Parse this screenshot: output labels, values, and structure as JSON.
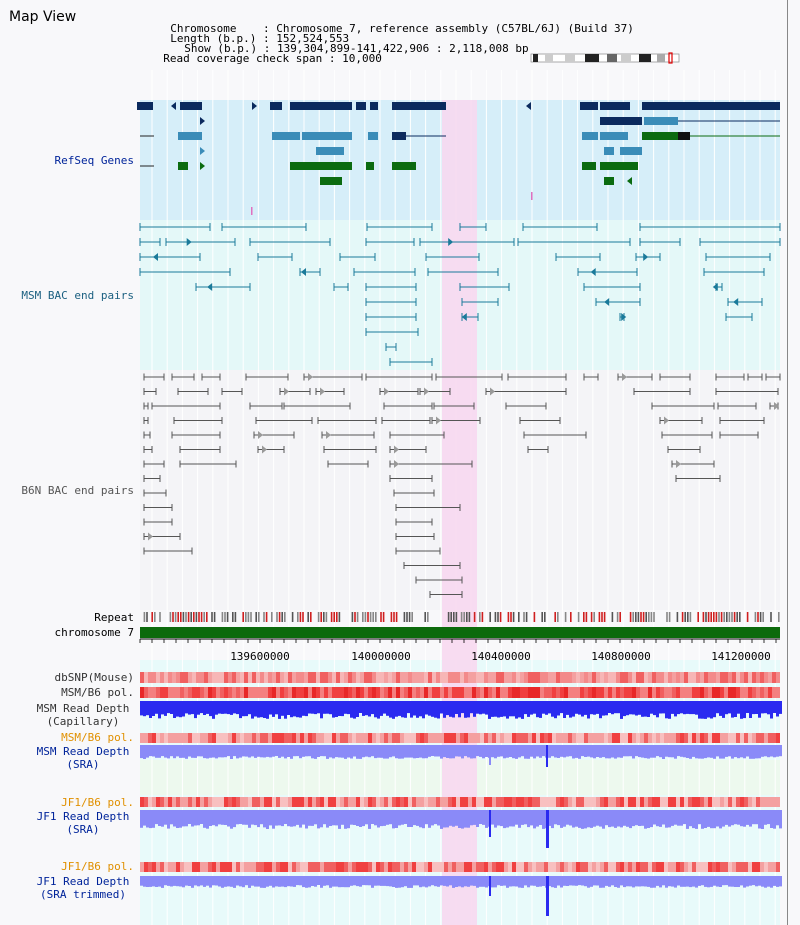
{
  "header": {
    "title": "Map View",
    "chromosome_label": "Chromosome",
    "chromosome_value": "Chromosome 7, reference assembly (C57BL/6J) (Build 37)",
    "length_label": "Length (b.p.)",
    "length_value": "152,524,553",
    "show_label": "Show (b.p.)",
    "show_value": "139,304,899-141,422,906 : 2,118,008 bp",
    "coverage_label": "Read coverage check span",
    "coverage_value": "10,000"
  },
  "tracks": {
    "refseq": "RefSeq Genes",
    "msm_bac": "MSM BAC end pairs",
    "b6n_bac": "B6N BAC end pairs",
    "repeat": "Repeat",
    "chromosome": "chromosome 7",
    "dbsnp": "dbSNP(Mouse)",
    "msm_b6_pol_1": "MSM/B6 pol.",
    "msm_read_depth_cap_1": "MSM Read Depth",
    "msm_read_depth_cap_2": "(Capillary)",
    "msm_b6_pol_2": "MSM/B6 pol.",
    "msm_read_depth_sra_1": "MSM Read Depth",
    "msm_read_depth_sra_2": "(SRA)",
    "jf1_b6_pol_1": "JF1/B6 pol.",
    "jf1_read_depth_sra_1": "JF1 Read Depth",
    "jf1_read_depth_sra_2": "(SRA)",
    "jf1_b6_pol_2": "JF1/B6 pol.",
    "jf1_read_depth_trim_1": "JF1 Read Depth",
    "jf1_read_depth_trim_2": "(SRA trimmed)"
  },
  "axis_ticks": [
    "139600000",
    "140000000",
    "140400000",
    "140800000",
    "141200000"
  ],
  "colors": {
    "refseq_dark": "#0b2a5e",
    "refseq_mid": "#3a8cb8",
    "refseq_green": "#0b6b10",
    "msm_bac": "#1a7a9a",
    "b6n_bac": "#555555",
    "highlight": "#f7d8f0",
    "chromosome": "#0c6a0c",
    "depth_blue": "#2a2af0",
    "depth_light": "#8a8af8",
    "label_blue": "#00249a",
    "label_orange": "#e09000",
    "label_teal": "#1a5f80"
  }
}
